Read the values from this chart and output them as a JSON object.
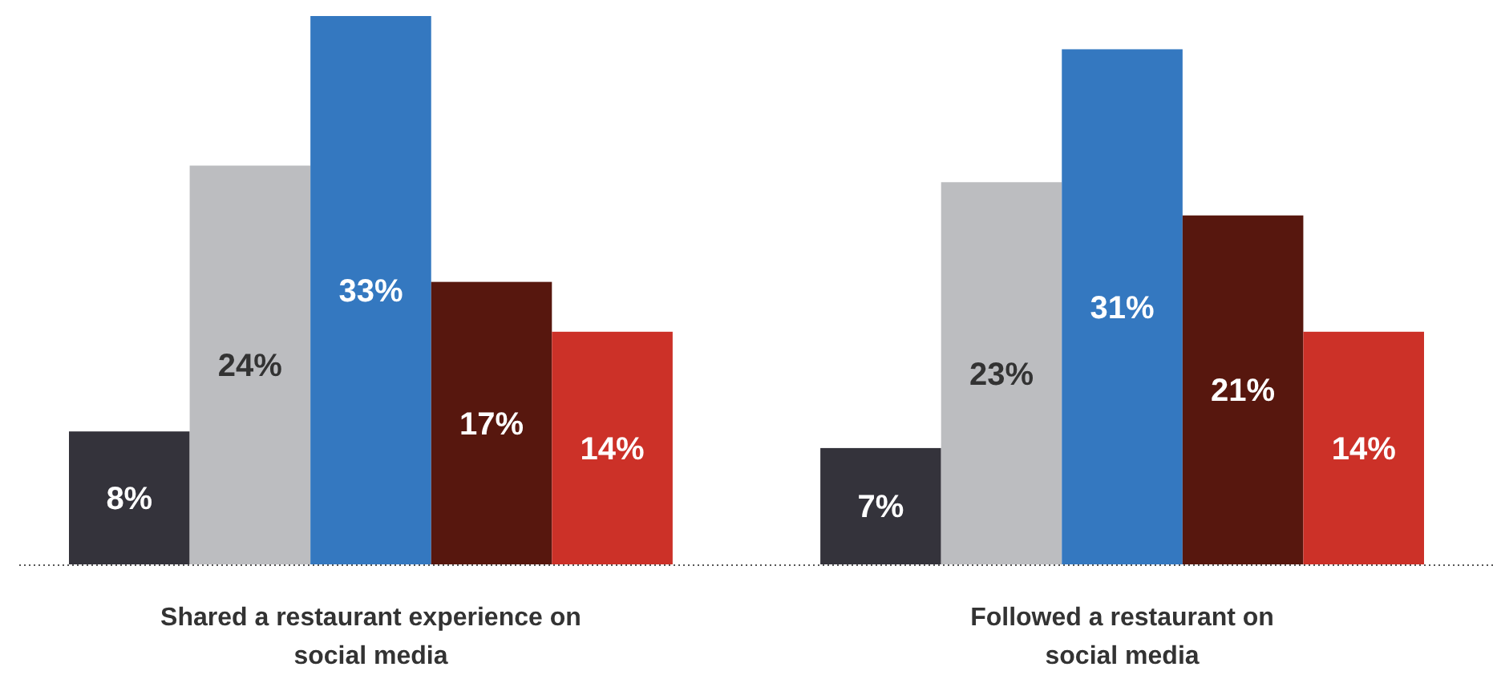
{
  "chart_data": {
    "type": "bar",
    "categories": [
      "Shared a restaurant experience on social media",
      "Followed a restaurant on social media"
    ],
    "series": [
      {
        "color": "#34333b",
        "values": [
          8,
          7
        ],
        "value_labels": [
          "8%",
          "7%"
        ]
      },
      {
        "color": "#bcbdc0",
        "values": [
          24,
          23
        ],
        "value_labels": [
          "24%",
          "23%"
        ]
      },
      {
        "color": "#3478c0",
        "values": [
          33,
          31
        ],
        "value_labels": [
          "33%",
          "31%"
        ]
      },
      {
        "color": "#57170e",
        "values": [
          17,
          21
        ],
        "value_labels": [
          "17%",
          "21%"
        ]
      },
      {
        "color": "#cc3128",
        "values": [
          14,
          14
        ],
        "value_labels": [
          "14%",
          "14%"
        ]
      }
    ]
  }
}
